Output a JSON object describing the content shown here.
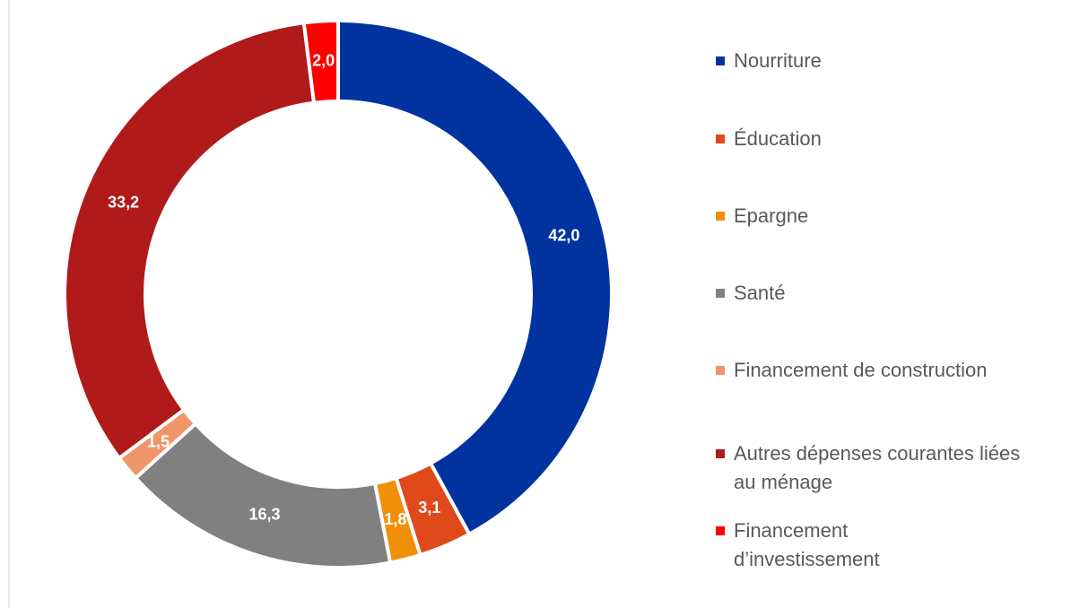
{
  "chart_data": {
    "type": "donut",
    "categories": [
      "Nourriture",
      "Éducation",
      "Epargne",
      "Santé",
      "Financement de construction",
      "Autres dépenses courantes liées au ménage",
      "Financement d’investissement"
    ],
    "values": [
      42.0,
      3.1,
      1.8,
      16.3,
      1.5,
      33.2,
      2.0
    ],
    "value_labels": [
      "42,0",
      "3,1",
      "1,8",
      "16,3",
      "1,5",
      "33,2",
      "2,0"
    ],
    "colors": [
      "#0033a0",
      "#e04a1a",
      "#f0900a",
      "#808080",
      "#f0956a",
      "#b01a1a",
      "#ff0000"
    ],
    "legend": "right"
  }
}
